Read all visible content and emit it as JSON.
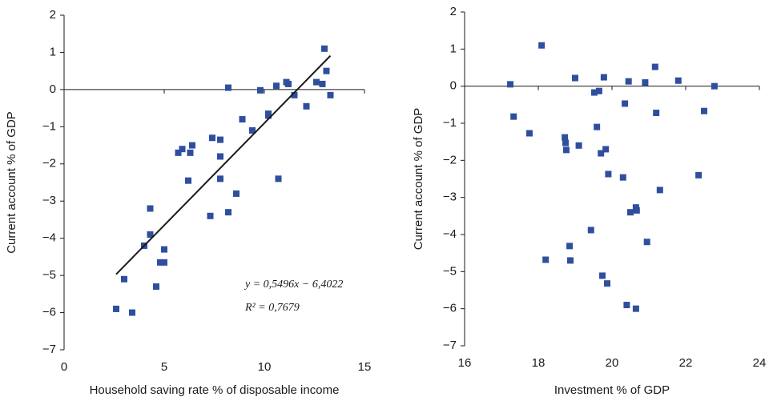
{
  "chart_data": [
    {
      "type": "scatter",
      "x_label": "Household saving rate % of disposable income",
      "y_label": "Current account % of GDP",
      "color": "#2f4f9e",
      "x": [
        2.6,
        3.0,
        3.4,
        4.0,
        4.3,
        4.3,
        4.6,
        4.8,
        5.0,
        5.0,
        5.7,
        5.9,
        6.2,
        6.3,
        6.4,
        7.3,
        7.4,
        7.8,
        7.8,
        7.8,
        8.2,
        8.2,
        8.6,
        8.9,
        9.4,
        9.8,
        10.2,
        10.2,
        10.6,
        10.7,
        11.1,
        11.2,
        11.5,
        12.1,
        12.6,
        12.9,
        13.0,
        13.1,
        13.3
      ],
      "y": [
        -5.9,
        -5.1,
        -6.0,
        -4.2,
        -3.9,
        -3.2,
        -5.3,
        -4.65,
        -4.65,
        -4.3,
        -1.7,
        -1.6,
        -2.45,
        -1.7,
        -1.5,
        -3.4,
        -1.3,
        -1.35,
        -1.8,
        -2.4,
        0.05,
        -3.3,
        -2.8,
        -0.8,
        -1.1,
        -0.02,
        -0.7,
        -0.65,
        0.1,
        -2.4,
        0.2,
        0.15,
        -0.15,
        -0.45,
        0.2,
        0.15,
        1.1,
        0.5,
        -0.15
      ],
      "trendline": {
        "x": [
          2.6,
          13.3
        ],
        "y": [
          -4.97,
          0.91
        ],
        "color": "#1a1a1a"
      },
      "annotations": [
        "y = 0,5496x − 6,4022",
        "R² = 0,7679"
      ],
      "xlim": [
        0,
        15
      ],
      "xticks": [
        0,
        5,
        10,
        15
      ],
      "ylim": [
        -7,
        2
      ],
      "yticks": [
        2,
        1,
        0,
        {
          "value": -1,
          "label": "−1"
        },
        {
          "value": -2,
          "label": "−2"
        },
        {
          "value": -3,
          "label": "−3"
        },
        {
          "value": -4,
          "label": "−4"
        },
        {
          "value": -5,
          "label": "−5"
        },
        {
          "value": -6,
          "label": "−6"
        },
        {
          "value": -7,
          "label": "−7"
        }
      ]
    },
    {
      "type": "scatter",
      "x_label": "Investment % of GDP",
      "y_label": "Current account % of GDP",
      "color": "#2f4f9e",
      "x": [
        17.24,
        17.33,
        17.76,
        18.09,
        18.2,
        18.72,
        18.74,
        18.76,
        18.85,
        18.87,
        19.0,
        19.1,
        19.43,
        19.52,
        19.59,
        19.65,
        19.7,
        19.74,
        19.78,
        19.83,
        19.87,
        19.9,
        20.3,
        20.35,
        20.4,
        20.65,
        20.45,
        20.5,
        20.65,
        20.67,
        20.9,
        20.95,
        21.17,
        21.2,
        21.3,
        21.8,
        22.35,
        22.5,
        22.78
      ],
      "y": [
        0.05,
        -0.82,
        -1.27,
        1.1,
        -4.68,
        -1.38,
        -1.53,
        -1.72,
        -4.31,
        -4.7,
        0.22,
        -1.6,
        -3.88,
        -0.17,
        -1.1,
        -0.13,
        -1.81,
        -5.11,
        0.24,
        -1.7,
        -5.32,
        -2.37,
        -2.46,
        -0.47,
        -5.9,
        -6.0,
        0.13,
        -3.4,
        -3.27,
        -3.35,
        0.1,
        -4.2,
        0.52,
        -0.72,
        -2.8,
        0.15,
        -2.4,
        -0.67,
        0.0
      ],
      "xlim": [
        16,
        24
      ],
      "xticks": [
        16,
        18,
        20,
        22,
        24
      ],
      "ylim": [
        -7,
        2
      ],
      "yticks": [
        2,
        1,
        0,
        {
          "value": -1,
          "label": "−1"
        },
        {
          "value": -2,
          "label": "−2"
        },
        {
          "value": -3,
          "label": "−3"
        },
        {
          "value": -4,
          "label": "−4"
        },
        {
          "value": -5,
          "label": "−5"
        },
        {
          "value": -6,
          "label": "−6"
        },
        {
          "value": -7,
          "label": "−7"
        }
      ]
    }
  ]
}
